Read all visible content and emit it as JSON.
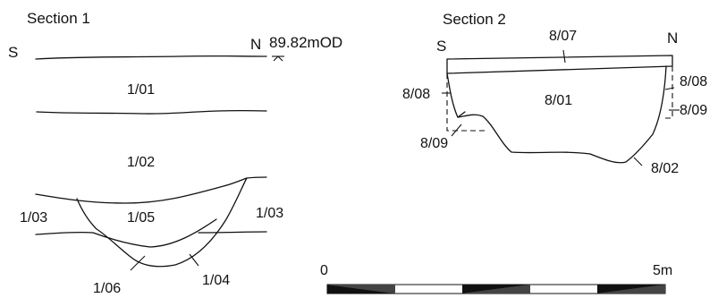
{
  "section1": {
    "title": "Section 1",
    "orient_left": "S",
    "orient_right": "N",
    "datum": "89.82mOD",
    "contexts": {
      "c101": "1/01",
      "c102": "1/02",
      "c103_left": "1/03",
      "c103_right": "1/03",
      "c105": "1/05",
      "c106": "1/06",
      "c104": "1/04"
    }
  },
  "section2": {
    "title": "Section 2",
    "orient_left": "S",
    "orient_right": "N",
    "contexts": {
      "c807": "8/07",
      "c801": "8/01",
      "c808_left": "8/08",
      "c808_right": "8/08",
      "c809_left": "8/09",
      "c809_right": "8/09",
      "c802": "8/02"
    }
  },
  "scale_bar": {
    "start_label": "0",
    "end_label": "5m"
  }
}
